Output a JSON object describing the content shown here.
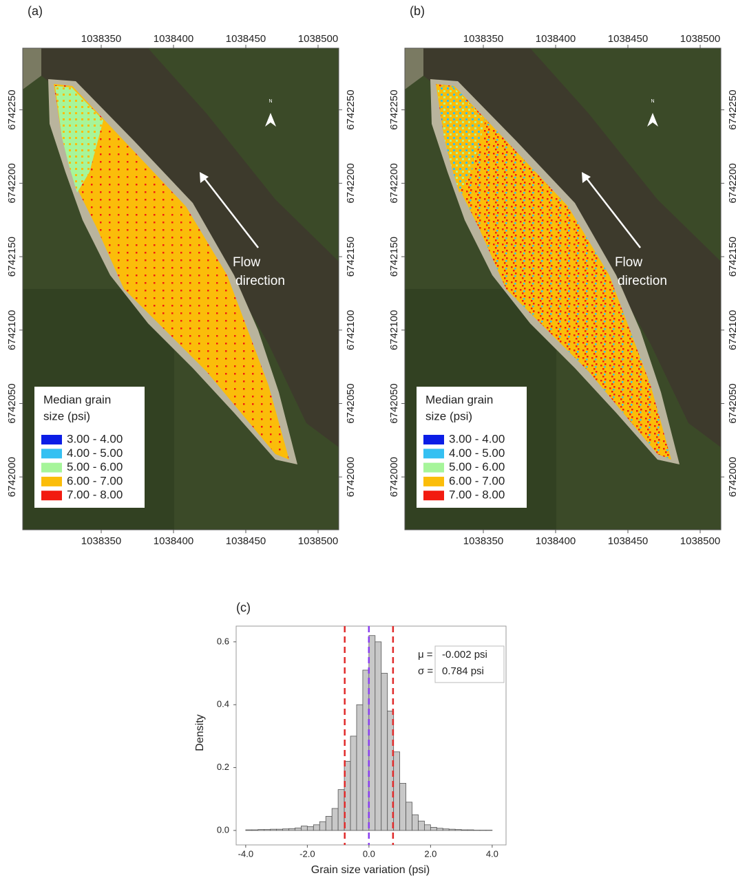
{
  "chart_data": [
    {
      "type": "map",
      "panel_label": "(a)",
      "xlim": [
        1038295.7,
        1038514.3
      ],
      "ylim": [
        6741964,
        6742292
      ],
      "xticks": [
        1038350,
        1038400,
        1038450,
        1038500
      ],
      "yticks": [
        6742000,
        6742050,
        6742100,
        6742150,
        6742200,
        6742250
      ],
      "legend": {
        "title": [
          "Median grain",
          "size (psi)"
        ],
        "items": [
          {
            "label": "3.00 - 4.00",
            "color": "#0b1de6"
          },
          {
            "label": "4.00 - 5.00",
            "color": "#35c0f2"
          },
          {
            "label": "5.00 - 6.00",
            "color": "#a6f59a"
          },
          {
            "label": "6.00 - 7.00",
            "color": "#fbbd0a"
          },
          {
            "label": "7.00 - 8.00",
            "color": "#f21b10"
          }
        ]
      },
      "annotation": [
        "Flow",
        "direction"
      ],
      "north": "N"
    },
    {
      "type": "map",
      "panel_label": "(b)",
      "xlim": [
        1038295.7,
        1038514.3
      ],
      "ylim": [
        6741964,
        6742292
      ],
      "xticks": [
        1038350,
        1038400,
        1038450,
        1038500
      ],
      "yticks": [
        6742000,
        6742050,
        6742100,
        6742150,
        6742200,
        6742250
      ],
      "legend": {
        "title": [
          "Median grain",
          "size (psi)"
        ],
        "items": [
          {
            "label": "3.00 - 4.00",
            "color": "#0b1de6"
          },
          {
            "label": "4.00 - 5.00",
            "color": "#35c0f2"
          },
          {
            "label": "5.00 - 6.00",
            "color": "#a6f59a"
          },
          {
            "label": "6.00 - 7.00",
            "color": "#fbbd0a"
          },
          {
            "label": "7.00 - 8.00",
            "color": "#f21b10"
          }
        ]
      },
      "annotation": [
        "Flow",
        "direction"
      ],
      "north": "N"
    },
    {
      "type": "histogram",
      "panel_label": "(c)",
      "xlabel": "Grain size variation (psi)",
      "ylabel": "Density",
      "bins": [
        -4.0,
        -3.8,
        -3.6,
        -3.4,
        -3.2,
        -3.0,
        -2.8,
        -2.6,
        -2.4,
        -2.2,
        -2.0,
        -1.8,
        -1.6,
        -1.4,
        -1.2,
        -1.0,
        -0.8,
        -0.6,
        -0.4,
        -0.2,
        0.0,
        0.2,
        0.4,
        0.6,
        0.8,
        1.0,
        1.2,
        1.4,
        1.6,
        1.8,
        2.0,
        2.2,
        2.4,
        2.6,
        2.8,
        3.0,
        3.2,
        3.4,
        3.6,
        3.8,
        4.0
      ],
      "values": [
        0.002,
        0.002,
        0.003,
        0.003,
        0.004,
        0.004,
        0.005,
        0.006,
        0.008,
        0.014,
        0.012,
        0.018,
        0.028,
        0.045,
        0.07,
        0.13,
        0.22,
        0.3,
        0.4,
        0.51,
        0.62,
        0.6,
        0.5,
        0.38,
        0.25,
        0.15,
        0.09,
        0.05,
        0.03,
        0.018,
        0.01,
        0.007,
        0.005,
        0.004,
        0.003,
        0.002,
        0.002,
        0.001,
        0.001,
        0.001
      ],
      "color": "#c8c8c8",
      "xlim": [
        -4.31,
        4.45
      ],
      "ylim": [
        -0.046,
        0.65
      ],
      "xticks": [
        {
          "value": -4,
          "label": "-4.0"
        },
        {
          "value": -2,
          "label": "-2.0"
        },
        {
          "value": 0,
          "label": "0.0"
        },
        {
          "value": 2,
          "label": "2.0"
        },
        {
          "value": 4,
          "label": "4.0"
        }
      ],
      "yticks": [
        {
          "value": 0,
          "label": "0.0"
        },
        0.2,
        0.4,
        0.6
      ],
      "mean": -0.002,
      "sd": 0.784,
      "mean_color": "#8a3ff0",
      "sd_color": "#e02a2a",
      "annotations": [
        "μ =",
        "-0.002 psi",
        "σ =",
        "0.784 psi"
      ]
    }
  ]
}
